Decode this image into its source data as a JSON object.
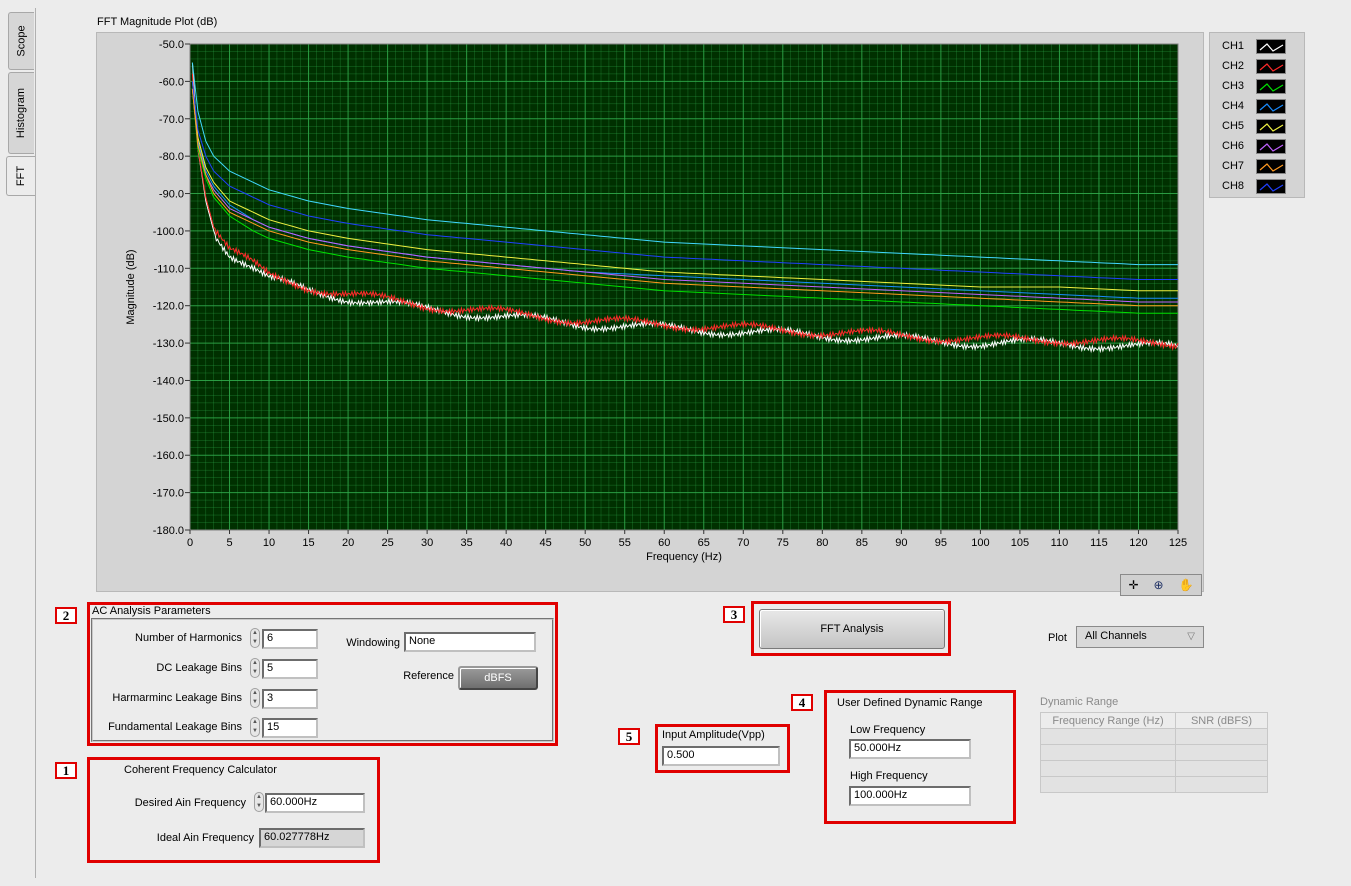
{
  "tabs": [
    {
      "label": "Scope"
    },
    {
      "label": "Histogram"
    },
    {
      "label": "FFT"
    }
  ],
  "graph": {
    "title": "FFT Magnitude Plot (dB)"
  },
  "legend": [
    {
      "name": "CH1",
      "color": "#ffffff"
    },
    {
      "name": "CH2",
      "color": "#ff2a2a"
    },
    {
      "name": "CH3",
      "color": "#00e000"
    },
    {
      "name": "CH4",
      "color": "#1a8cff"
    },
    {
      "name": "CH5",
      "color": "#f0f040"
    },
    {
      "name": "CH6",
      "color": "#c060ff"
    },
    {
      "name": "CH7",
      "color": "#ff9a20"
    },
    {
      "name": "CH8",
      "color": "#2040ff"
    }
  ],
  "chart_data": {
    "type": "line",
    "title": "FFT Magnitude Plot (dB)",
    "xlabel": "Frequency (Hz)",
    "ylabel": "Magnitude (dB)",
    "xlim": [
      0,
      125
    ],
    "ylim": [
      -180,
      -50
    ],
    "x_ticks": [
      "0",
      "5",
      "10",
      "15",
      "20",
      "25",
      "30",
      "35",
      "40",
      "45",
      "50",
      "55",
      "60",
      "65",
      "70",
      "75",
      "80",
      "85",
      "90",
      "95",
      "100",
      "105",
      "110",
      "115",
      "120",
      "125"
    ],
    "y_ticks": [
      "-50.0",
      "-60.0",
      "-70.0",
      "-80.0",
      "-90.0",
      "-100.0",
      "-110.0",
      "-120.0",
      "-130.0",
      "-140.0",
      "-150.0",
      "-160.0",
      "-170.0",
      "-180.0"
    ],
    "grid": true,
    "background": "#003000",
    "grid_color": "#2fa84a",
    "legend_position": "outside-right",
    "series": [
      {
        "name": "CH1",
        "color": "#ffffff",
        "x": [
          0.3,
          1,
          2,
          3,
          5,
          8,
          10,
          15,
          20,
          30,
          40,
          50,
          60,
          70,
          80,
          90,
          100,
          110,
          120,
          125
        ],
        "y": [
          -55,
          -78,
          -92,
          -100,
          -106,
          -110,
          -113,
          -116,
          -118,
          -121,
          -123,
          -125,
          -126,
          -127,
          -128,
          -129,
          -130,
          -130,
          -131,
          -131
        ]
      },
      {
        "name": "CH2",
        "color": "#ff2a2a",
        "x": [
          0.3,
          1,
          2,
          3,
          5,
          8,
          10,
          15,
          20,
          30,
          40,
          50,
          60,
          70,
          80,
          90,
          100,
          110,
          120,
          125
        ],
        "y": [
          -58,
          -78,
          -91,
          -99,
          -105,
          -109,
          -112,
          -115,
          -117,
          -120,
          -122,
          -124,
          -125,
          -126,
          -127,
          -128,
          -129,
          -129,
          -130,
          -130
        ]
      },
      {
        "name": "CH3",
        "color": "#00e000",
        "x": [
          0.3,
          1,
          2,
          3,
          5,
          8,
          10,
          15,
          20,
          30,
          40,
          50,
          60,
          70,
          80,
          90,
          100,
          110,
          120,
          125
        ],
        "y": [
          -62,
          -78,
          -86,
          -91,
          -96,
          -100,
          -102,
          -105,
          -107,
          -110,
          -112,
          -114,
          -116,
          -117,
          -118,
          -119,
          -120,
          -121,
          -122,
          -122
        ]
      },
      {
        "name": "CH4",
        "color": "#1a8cff",
        "x": [
          0.3,
          1,
          2,
          3,
          5,
          8,
          10,
          15,
          20,
          30,
          40,
          50,
          60,
          70,
          80,
          90,
          100,
          110,
          120,
          125
        ],
        "y": [
          -62,
          -76,
          -84,
          -88,
          -93,
          -97,
          -99,
          -102,
          -104,
          -107,
          -109,
          -111,
          -112,
          -113,
          -114,
          -115,
          -116,
          -117,
          -118,
          -118
        ]
      },
      {
        "name": "CH5",
        "color": "#f0f040",
        "x": [
          0.3,
          1,
          2,
          3,
          5,
          8,
          10,
          15,
          20,
          30,
          40,
          50,
          60,
          70,
          80,
          90,
          100,
          110,
          120,
          125
        ],
        "y": [
          -60,
          -75,
          -83,
          -87,
          -92,
          -95,
          -97,
          -100,
          -102,
          -105,
          -107,
          -109,
          -111,
          -112,
          -113,
          -114,
          -115,
          -115,
          -116,
          -116
        ]
      },
      {
        "name": "CH6",
        "color": "#c060ff",
        "x": [
          0.3,
          1,
          2,
          3,
          5,
          8,
          10,
          15,
          20,
          30,
          40,
          50,
          60,
          70,
          80,
          90,
          100,
          110,
          120,
          125
        ],
        "y": [
          -62,
          -77,
          -85,
          -89,
          -94,
          -97,
          -99,
          -102,
          -104,
          -107,
          -109,
          -111,
          -113,
          -114,
          -115,
          -116,
          -117,
          -118,
          -119,
          -119
        ]
      },
      {
        "name": "CH7",
        "color": "#ff9a20",
        "x": [
          0.3,
          1,
          2,
          3,
          5,
          8,
          10,
          15,
          20,
          30,
          40,
          50,
          60,
          70,
          80,
          90,
          100,
          110,
          120,
          125
        ],
        "y": [
          -62,
          -77,
          -85,
          -90,
          -95,
          -98,
          -100,
          -103,
          -105,
          -108,
          -110,
          -112,
          -114,
          -115,
          -116,
          -117,
          -118,
          -119,
          -120,
          -120
        ]
      },
      {
        "name": "CH8",
        "color": "#2040ff",
        "x": [
          0.3,
          1,
          2,
          3,
          5,
          8,
          10,
          15,
          20,
          30,
          40,
          50,
          60,
          70,
          80,
          90,
          100,
          110,
          120,
          125
        ],
        "y": [
          -60,
          -73,
          -80,
          -84,
          -88,
          -91,
          -93,
          -96,
          -98,
          -101,
          -103,
          -105,
          -107,
          -108,
          -109,
          -110,
          -111,
          -112,
          -113,
          -113
        ]
      },
      {
        "name": "",
        "color": "#40d8ff",
        "x": [
          0.3,
          1,
          2,
          3,
          5,
          8,
          10,
          15,
          20,
          30,
          40,
          50,
          60,
          70,
          80,
          90,
          100,
          110,
          120,
          125
        ],
        "y": [
          -55,
          -68,
          -76,
          -80,
          -84,
          -87,
          -89,
          -92,
          -94,
          -97,
          -99,
          -101,
          -103,
          -104,
          -105,
          -106,
          -107,
          -108,
          -109,
          -109
        ]
      }
    ]
  },
  "callouts": [
    "1",
    "2",
    "3",
    "4",
    "5"
  ],
  "ac": {
    "title": "AC Analysis Parameters",
    "harmonics_label": "Number of Harmonics",
    "harmonics_value": "6",
    "dc_label": "DC Leakage Bins",
    "dc_value": "5",
    "harm_leak_label": "Harmarminc Leakage Bins",
    "harm_leak_value": "3",
    "fund_label": "Fundamental Leakage Bins",
    "fund_value": "15",
    "windowing_label": "Windowing",
    "windowing_value": "None",
    "reference_label": "Reference",
    "reference_value": "dBFS"
  },
  "coherent": {
    "title": "Coherent Frequency Calculator",
    "desired_label": "Desired Ain Frequency",
    "desired_value": "60.000Hz",
    "ideal_label": "Ideal Ain Frequency",
    "ideal_value": "60.027778Hz"
  },
  "fft_button": "FFT Analysis",
  "input_amp": {
    "label": "Input Amplitude(Vpp)",
    "value": "0.500"
  },
  "udr": {
    "title": "User Defined Dynamic Range",
    "low_label": "Low Frequency",
    "low_value": "50.000Hz",
    "high_label": "High Frequency",
    "high_value": "100.000Hz"
  },
  "plot_select": {
    "label": "Plot",
    "value": "All Channels"
  },
  "dynamic_range": {
    "title": "Dynamic Range",
    "headers": [
      "Frequency Range (Hz)",
      "SNR (dBFS)"
    ]
  },
  "palette_icons": [
    "crosshair-icon",
    "zoom-icon",
    "hand-icon"
  ]
}
